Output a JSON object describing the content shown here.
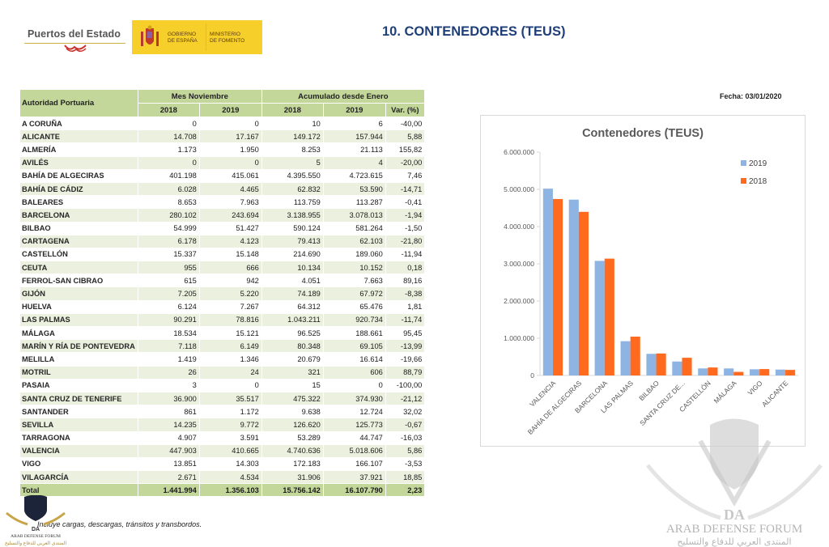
{
  "header": {
    "logo_puertos": "Puertos del Estado",
    "logo_gobierno": "GOBIERNO\nDE ESPAÑA",
    "logo_ministerio": "MINISTERIO\nDE FOMENTO",
    "title": "10. CONTENEDORES (TEUS)",
    "fecha": "Fecha: 03/01/2020"
  },
  "table": {
    "col_label": "Autoridad Portuaria",
    "group_month": "Mes Noviembre",
    "group_cum": "Acumulado desde Enero",
    "sub_headers": [
      "2018",
      "2019",
      "2018",
      "2019",
      "Var. (%)"
    ],
    "rows": [
      {
        "name": "A CORUÑA",
        "m2018": "0",
        "m2019": "0",
        "a2018": "10",
        "a2019": "6",
        "var": "-40,00"
      },
      {
        "name": "ALICANTE",
        "m2018": "14.708",
        "m2019": "17.167",
        "a2018": "149.172",
        "a2019": "157.944",
        "var": "5,88"
      },
      {
        "name": "ALMERÍA",
        "m2018": "1.173",
        "m2019": "1.950",
        "a2018": "8.253",
        "a2019": "21.113",
        "var": "155,82"
      },
      {
        "name": "AVILÉS",
        "m2018": "0",
        "m2019": "0",
        "a2018": "5",
        "a2019": "4",
        "var": "-20,00"
      },
      {
        "name": "BAHÍA DE ALGECIRAS",
        "m2018": "401.198",
        "m2019": "415.061",
        "a2018": "4.395.550",
        "a2019": "4.723.615",
        "var": "7,46"
      },
      {
        "name": "BAHÍA DE CÁDIZ",
        "m2018": "6.028",
        "m2019": "4.465",
        "a2018": "62.832",
        "a2019": "53.590",
        "var": "-14,71"
      },
      {
        "name": "BALEARES",
        "m2018": "8.653",
        "m2019": "7.963",
        "a2018": "113.759",
        "a2019": "113.287",
        "var": "-0,41"
      },
      {
        "name": "BARCELONA",
        "m2018": "280.102",
        "m2019": "243.694",
        "a2018": "3.138.955",
        "a2019": "3.078.013",
        "var": "-1,94"
      },
      {
        "name": "BILBAO",
        "m2018": "54.999",
        "m2019": "51.427",
        "a2018": "590.124",
        "a2019": "581.264",
        "var": "-1,50"
      },
      {
        "name": "CARTAGENA",
        "m2018": "6.178",
        "m2019": "4.123",
        "a2018": "79.413",
        "a2019": "62.103",
        "var": "-21,80"
      },
      {
        "name": "CASTELLÓN",
        "m2018": "15.337",
        "m2019": "15.148",
        "a2018": "214.690",
        "a2019": "189.060",
        "var": "-11,94"
      },
      {
        "name": "CEUTA",
        "m2018": "955",
        "m2019": "666",
        "a2018": "10.134",
        "a2019": "10.152",
        "var": "0,18"
      },
      {
        "name": "FERROL-SAN CIBRAO",
        "m2018": "615",
        "m2019": "942",
        "a2018": "4.051",
        "a2019": "7.663",
        "var": "89,16"
      },
      {
        "name": "GIJÓN",
        "m2018": "7.205",
        "m2019": "5.220",
        "a2018": "74.189",
        "a2019": "67.972",
        "var": "-8,38"
      },
      {
        "name": "HUELVA",
        "m2018": "6.124",
        "m2019": "7.267",
        "a2018": "64.312",
        "a2019": "65.476",
        "var": "1,81"
      },
      {
        "name": "LAS PALMAS",
        "m2018": "90.291",
        "m2019": "78.816",
        "a2018": "1.043.211",
        "a2019": "920.734",
        "var": "-11,74"
      },
      {
        "name": "MÁLAGA",
        "m2018": "18.534",
        "m2019": "15.121",
        "a2018": "96.525",
        "a2019": "188.661",
        "var": "95,45"
      },
      {
        "name": "MARÍN Y RÍA DE PONTEVEDRA",
        "m2018": "7.118",
        "m2019": "6.149",
        "a2018": "80.348",
        "a2019": "69.105",
        "var": "-13,99"
      },
      {
        "name": "MELILLA",
        "m2018": "1.419",
        "m2019": "1.346",
        "a2018": "20.679",
        "a2019": "16.614",
        "var": "-19,66"
      },
      {
        "name": "MOTRIL",
        "m2018": "26",
        "m2019": "24",
        "a2018": "321",
        "a2019": "606",
        "var": "88,79"
      },
      {
        "name": "PASAIA",
        "m2018": "3",
        "m2019": "0",
        "a2018": "15",
        "a2019": "0",
        "var": "-100,00"
      },
      {
        "name": "SANTA CRUZ DE TENERIFE",
        "m2018": "36.900",
        "m2019": "35.517",
        "a2018": "475.322",
        "a2019": "374.930",
        "var": "-21,12"
      },
      {
        "name": "SANTANDER",
        "m2018": "861",
        "m2019": "1.172",
        "a2018": "9.638",
        "a2019": "12.724",
        "var": "32,02"
      },
      {
        "name": "SEVILLA",
        "m2018": "14.235",
        "m2019": "9.772",
        "a2018": "126.620",
        "a2019": "125.773",
        "var": "-0,67"
      },
      {
        "name": "TARRAGONA",
        "m2018": "4.907",
        "m2019": "3.591",
        "a2018": "53.289",
        "a2019": "44.747",
        "var": "-16,03"
      },
      {
        "name": "VALENCIA",
        "m2018": "447.903",
        "m2019": "410.665",
        "a2018": "4.740.636",
        "a2019": "5.018.606",
        "var": "5,86"
      },
      {
        "name": "VIGO",
        "m2018": "13.851",
        "m2019": "14.303",
        "a2018": "172.183",
        "a2019": "166.107",
        "var": "-3,53"
      },
      {
        "name": "VILAGARCÍA",
        "m2018": "2.671",
        "m2019": "4.534",
        "a2018": "31.906",
        "a2019": "37.921",
        "var": "18,85"
      }
    ],
    "total": {
      "name": "Total",
      "m2018": "1.441.994",
      "m2019": "1.356.103",
      "a2018": "15.756.142",
      "a2019": "16.107.790",
      "var": "2,23"
    },
    "note": "Incluye cargas, descargas, tránsitos y transbordos."
  },
  "colors": {
    "header_green": "#c4d79b",
    "row_alt_green": "#ebf1de",
    "title_blue": "#1f3f78",
    "series_2019": "#8eb4e3",
    "series_2018": "#ff6a1f"
  },
  "chart_data": {
    "type": "bar",
    "title": "Contenedores (TEUS)",
    "categories": [
      "VALENCIA",
      "BAHÍA DE ALGECIRAS",
      "BARCELONA",
      "LAS PALMAS",
      "BILBAO",
      "SANTA CRUZ DE...",
      "CASTELLÓN",
      "MÁLAGA",
      "VIGO",
      "ALICANTE"
    ],
    "series": [
      {
        "name": "2019",
        "color": "#8eb4e3",
        "values": [
          5018606,
          4723615,
          3078013,
          920734,
          581264,
          374930,
          189060,
          188661,
          166107,
          157944
        ]
      },
      {
        "name": "2018",
        "color": "#ff6a1f",
        "values": [
          4740636,
          4395550,
          3138955,
          1043211,
          590124,
          475322,
          214690,
          96525,
          172183,
          149172
        ]
      }
    ],
    "xlabel": "",
    "ylabel": "",
    "ylim": [
      0,
      6000000
    ],
    "yticks": [
      0,
      1000000,
      2000000,
      3000000,
      4000000,
      5000000,
      6000000
    ],
    "ytick_labels": [
      "0",
      "1.000.000",
      "2.000.000",
      "3.000.000",
      "4.000.000",
      "5.000.000",
      "6.000.000"
    ],
    "grid": false,
    "legend": "right"
  },
  "watermark": {
    "brand": "ARAB DEFENSE FORUM",
    "arabic": "المنتدى العربي للدفاع والتسليح",
    "mark": "DA"
  }
}
